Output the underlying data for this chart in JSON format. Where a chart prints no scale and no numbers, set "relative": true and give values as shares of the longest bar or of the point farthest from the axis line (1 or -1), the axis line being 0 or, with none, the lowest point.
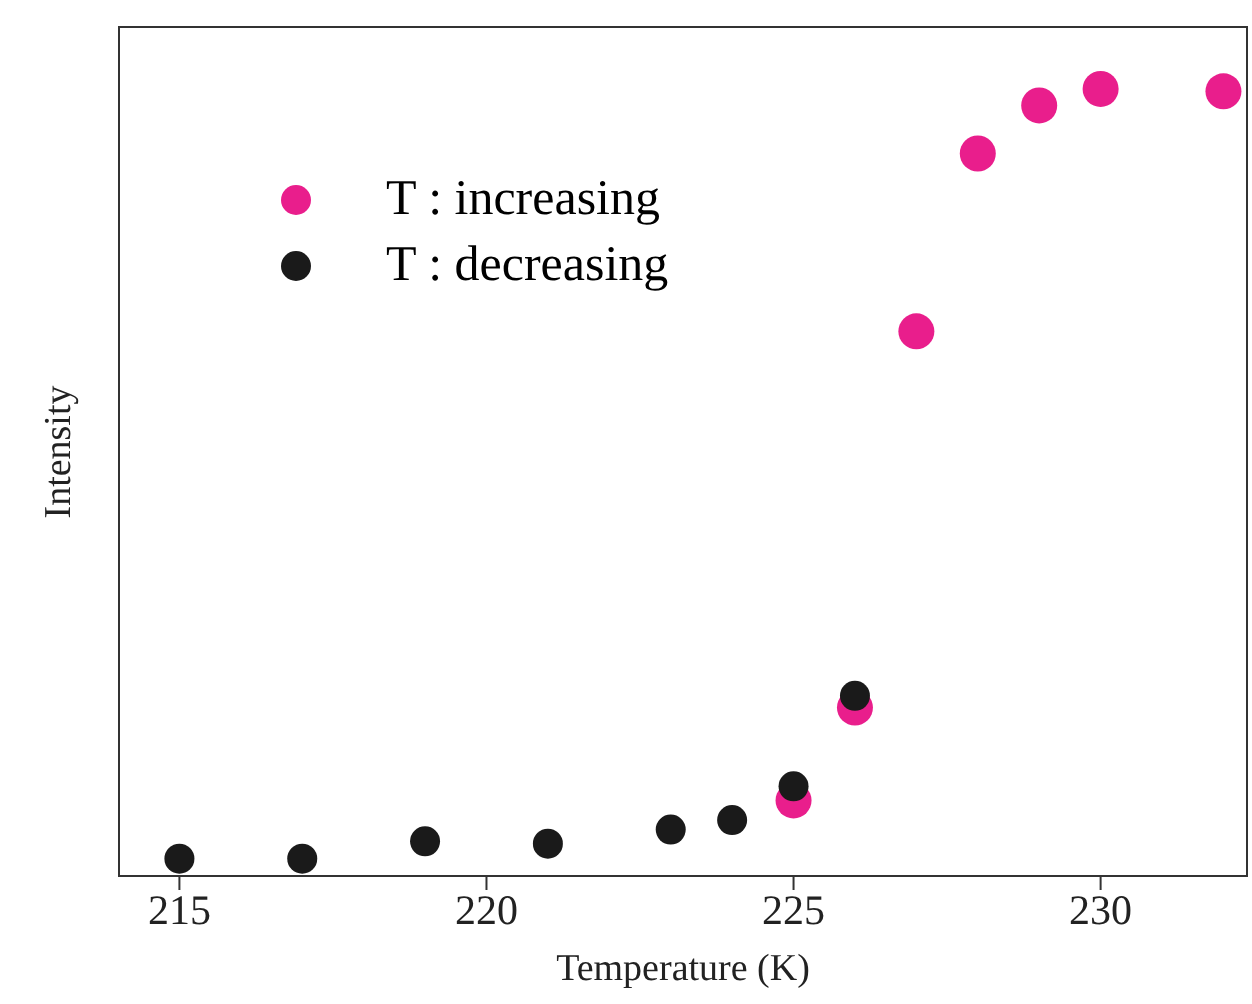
{
  "chart_data": {
    "type": "scatter",
    "xlabel": "Temperature (K)",
    "ylabel": "Intensity",
    "relative": true,
    "xlim": [
      214,
      232.4
    ],
    "xticks": [
      215,
      220,
      225,
      230
    ],
    "legend": "top left",
    "marker": "circle",
    "grid": false,
    "series": [
      {
        "name": "T : increasing",
        "color": "#e91e8c",
        "x": [
          225,
          226,
          227,
          228,
          229,
          230,
          232
        ],
        "values": [
          0.096,
          0.214,
          0.692,
          0.918,
          0.979,
          1.0,
          0.997
        ]
      },
      {
        "name": "T : decreasing",
        "color": "#1a1a1a",
        "x": [
          215,
          217,
          219,
          221,
          223,
          224,
          225,
          226
        ],
        "values": [
          0.022,
          0.022,
          0.044,
          0.041,
          0.059,
          0.071,
          0.114,
          0.229
        ]
      }
    ]
  }
}
